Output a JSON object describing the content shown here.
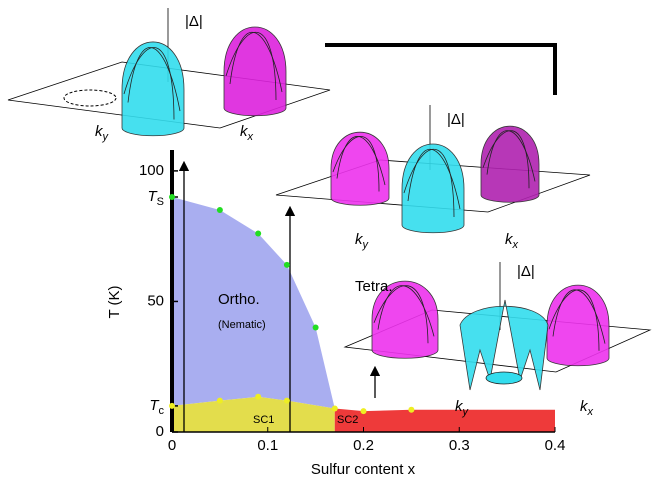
{
  "chart_data": {
    "type": "phase",
    "xlabel": "Sulfur content x",
    "ylabel": "T (K)",
    "xlim": [
      0,
      0.4
    ],
    "ylim": [
      0,
      108
    ],
    "xticks": [
      0,
      0.1,
      0.2,
      0.3,
      0.4
    ],
    "yticks": [
      0,
      {
        "value": 10,
        "label": "Tc"
      },
      50,
      {
        "value": 90,
        "label": "TS"
      },
      100
    ],
    "series": [
      {
        "x": [
          0,
          0.05,
          0.09,
          0.12,
          0.15
        ],
        "values": [
          90,
          85,
          76,
          64,
          40
        ],
        "color": "#22dd22"
      },
      {
        "x": [
          0,
          0.05,
          0.09,
          0.12,
          0.17
        ],
        "values": [
          10,
          12,
          13.5,
          12,
          9
        ],
        "color": "#eeee22"
      },
      {
        "x": [
          0.2,
          0.25
        ],
        "values": [
          8,
          8.5
        ],
        "color": "#eeee22"
      }
    ],
    "region_colors": [
      "#a9aef0",
      "#e3dd4c",
      "#ee3a3a"
    ],
    "annotations": [
      "Ortho.",
      "(Nematic)",
      "SC1",
      "SC2",
      "Tetra."
    ],
    "insets": [
      {
        "gap": "|Δ|",
        "ky": "ky",
        "kx": "kx"
      },
      {
        "gap": "|Δ|",
        "ky": "ky",
        "kx": "kx"
      },
      {
        "gap": "|Δ|",
        "ky": "ky",
        "kx": "kx"
      }
    ]
  }
}
